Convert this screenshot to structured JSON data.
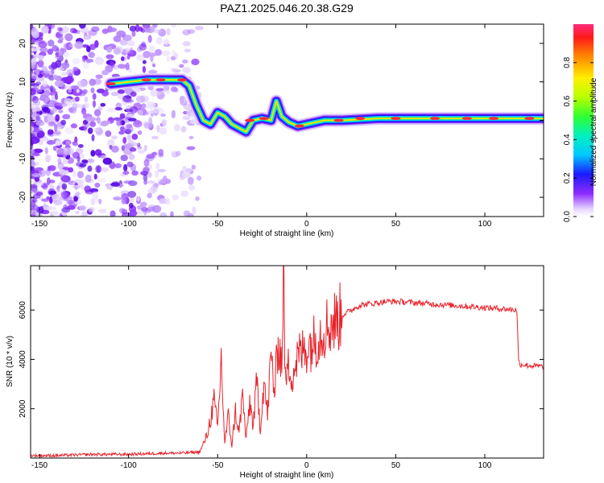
{
  "title": "PAZ1.2025.046.20.38.G29",
  "chart_data": [
    {
      "type": "heatmap",
      "xlabel": "Height of straight line (km)",
      "ylabel": "Frequency (Hz)",
      "xlim": [
        -155,
        133
      ],
      "ylim": [
        -25,
        25
      ],
      "xticks": [
        -150,
        -100,
        -50,
        0,
        50,
        100
      ],
      "yticks": [
        -20,
        -10,
        0,
        10,
        20
      ],
      "colorbar": {
        "label": "Normalized spectral amplitude",
        "range": [
          0,
          1
        ],
        "ticks": [
          0.0,
          0.2,
          0.4,
          0.6,
          0.8
        ]
      },
      "ridge": {
        "x": [
          -110,
          -100,
          -90,
          -80,
          -70,
          -66,
          -62,
          -58,
          -54,
          -50,
          -46,
          -42,
          -38,
          -34,
          -30,
          -25,
          -20,
          -17,
          -14,
          -10,
          -5,
          0,
          10,
          20,
          40,
          60,
          80,
          100,
          120,
          133
        ],
        "y": [
          9.5,
          10,
          10.5,
          10.5,
          10.5,
          9,
          4,
          0,
          -1,
          2,
          1,
          -1,
          -2,
          -3,
          0,
          0.5,
          0,
          5,
          1,
          -0.5,
          -1.5,
          -1,
          0,
          0,
          0.5,
          0.5,
          0.5,
          0.5,
          0.5,
          0.5
        ]
      }
    },
    {
      "type": "line",
      "xlabel": "Height of straight line (km)",
      "ylabel": "SNR (10 * v/v)",
      "xlim": [
        -155,
        133
      ],
      "ylim": [
        0,
        7800
      ],
      "xticks": [
        -150,
        -100,
        -50,
        0,
        50,
        100
      ],
      "yticks": [
        2000,
        4000,
        6000
      ],
      "series": [
        {
          "name": "SNR",
          "color": "#e8232b",
          "x": [
            -155,
            -140,
            -120,
            -100,
            -80,
            -70,
            -60,
            -56,
            -52,
            -50,
            -48,
            -46,
            -44,
            -42,
            -40,
            -38,
            -36,
            -34,
            -32,
            -30,
            -28,
            -26,
            -24,
            -22,
            -20,
            -18,
            -16,
            -14,
            -13,
            -12,
            -10,
            -8,
            -5,
            0,
            5,
            10,
            15,
            20,
            25,
            30,
            35,
            40,
            45,
            50,
            60,
            70,
            80,
            90,
            100,
            110,
            118,
            119,
            120,
            125,
            133
          ],
          "y": [
            100,
            100,
            150,
            150,
            200,
            200,
            250,
            900,
            2300,
            1200,
            4000,
            600,
            1700,
            500,
            1900,
            1000,
            2600,
            700,
            2300,
            1300,
            3100,
            1200,
            3200,
            1700,
            4200,
            2600,
            4800,
            3800,
            7800,
            3000,
            3800,
            3400,
            4100,
            4500,
            4800,
            5300,
            5500,
            5800,
            6000,
            6200,
            6250,
            6300,
            6350,
            6350,
            6300,
            6250,
            6200,
            6150,
            6100,
            6050,
            6000,
            3900,
            3800,
            3750,
            3700
          ]
        }
      ]
    }
  ]
}
